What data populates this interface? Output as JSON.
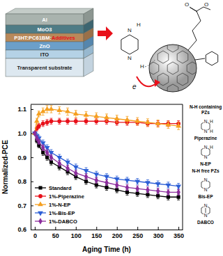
{
  "diagram": {
    "layers": [
      "Al",
      "MoO3",
      "P3HT:PC61BM:",
      "ZnO",
      "ITO",
      "Transparent substrate"
    ],
    "additive_label": "Additives",
    "molecule_atoms": [
      "O",
      "O",
      "N",
      "H",
      "N",
      "H"
    ],
    "electron": "e"
  },
  "chart_data": {
    "type": "line",
    "x_label": "Aging Time (h)",
    "y_label": "Normalized-PCE",
    "x": [
      0,
      5,
      10,
      20,
      30,
      40,
      60,
      80,
      100,
      125,
      150,
      175,
      200,
      225,
      250,
      275,
      300,
      325,
      350
    ],
    "series": [
      {
        "name": "Standard",
        "color": "#000000",
        "marker": "square",
        "values": [
          1.0,
          0.97,
          0.95,
          0.92,
          0.9,
          0.88,
          0.86,
          0.84,
          0.82,
          0.8,
          0.785,
          0.775,
          0.765,
          0.755,
          0.75,
          0.745,
          0.74,
          0.735,
          0.735
        ],
        "errors": [
          0.0,
          0.01,
          0.01,
          0.012,
          0.012,
          0.012,
          0.012,
          0.012,
          0.012,
          0.012,
          0.012,
          0.012,
          0.012,
          0.012,
          0.012,
          0.012,
          0.012,
          0.012,
          0.012
        ]
      },
      {
        "name": "1%-Piperazine",
        "color": "#e8101a",
        "marker": "circle",
        "values": [
          1.0,
          1.02,
          1.03,
          1.04,
          1.045,
          1.05,
          1.05,
          1.05,
          1.05,
          1.05,
          1.05,
          1.05,
          1.045,
          1.045,
          1.045,
          1.04,
          1.04,
          1.04,
          1.04
        ],
        "errors": [
          0.0,
          0.01,
          0.01,
          0.012,
          0.012,
          0.012,
          0.012,
          0.012,
          0.012,
          0.012,
          0.012,
          0.012,
          0.012,
          0.012,
          0.012,
          0.012,
          0.012,
          0.012,
          0.012
        ]
      },
      {
        "name": "1%-N-EP",
        "color": "#f5a020",
        "marker": "triangle-up",
        "values": [
          1.0,
          1.05,
          1.08,
          1.09,
          1.1,
          1.1,
          1.095,
          1.09,
          1.08,
          1.075,
          1.07,
          1.065,
          1.06,
          1.055,
          1.05,
          1.045,
          1.04,
          1.035,
          1.03
        ],
        "errors": [
          0.0,
          0.012,
          0.012,
          0.015,
          0.015,
          0.015,
          0.015,
          0.015,
          0.015,
          0.015,
          0.015,
          0.015,
          0.015,
          0.015,
          0.015,
          0.015,
          0.015,
          0.015,
          0.015
        ]
      },
      {
        "name": "1%-Bis-EP",
        "color": "#2c5fd6",
        "marker": "triangle-down",
        "values": [
          1.0,
          0.99,
          0.98,
          0.96,
          0.94,
          0.92,
          0.9,
          0.88,
          0.86,
          0.845,
          0.83,
          0.82,
          0.81,
          0.805,
          0.8,
          0.795,
          0.79,
          0.785,
          0.78
        ],
        "errors": [
          0.0,
          0.01,
          0.01,
          0.012,
          0.012,
          0.012,
          0.012,
          0.012,
          0.012,
          0.012,
          0.012,
          0.012,
          0.012,
          0.012,
          0.012,
          0.012,
          0.012,
          0.012,
          0.012
        ]
      },
      {
        "name": "1%-DABCO",
        "color": "#8b2c9c",
        "marker": "diamond",
        "values": [
          1.0,
          0.98,
          0.965,
          0.94,
          0.92,
          0.9,
          0.875,
          0.855,
          0.835,
          0.82,
          0.805,
          0.795,
          0.785,
          0.775,
          0.77,
          0.765,
          0.76,
          0.755,
          0.755
        ],
        "errors": [
          0.0,
          0.01,
          0.01,
          0.012,
          0.012,
          0.012,
          0.012,
          0.012,
          0.012,
          0.012,
          0.012,
          0.012,
          0.012,
          0.012,
          0.012,
          0.012,
          0.012,
          0.012,
          0.012
        ]
      }
    ],
    "xlim": [
      -10,
      360
    ],
    "xticks": [
      0,
      50,
      100,
      150,
      200,
      250,
      300,
      350
    ],
    "ylim": [
      0.6,
      1.12
    ],
    "yticks": [
      0.6,
      0.7,
      0.8,
      0.9,
      {
        "value": 1,
        "label": "1.0"
      },
      1.1
    ],
    "legend": "lower left",
    "grid": false
  },
  "structures": {
    "groups": [
      {
        "title": "N-H containing PZs",
        "items": [
          {
            "name": "Piperazine",
            "atoms": [
              "N",
              "H",
              "N",
              "H"
            ]
          },
          {
            "name": "N-EP",
            "atoms": [
              "N",
              "H",
              "N"
            ]
          }
        ]
      },
      {
        "title": "N-H free PZs",
        "items": [
          {
            "name": "Bis-EP",
            "atoms": [
              "N",
              "N"
            ]
          },
          {
            "name": "DABCO",
            "atoms": [
              "N",
              "N"
            ]
          }
        ]
      }
    ]
  }
}
